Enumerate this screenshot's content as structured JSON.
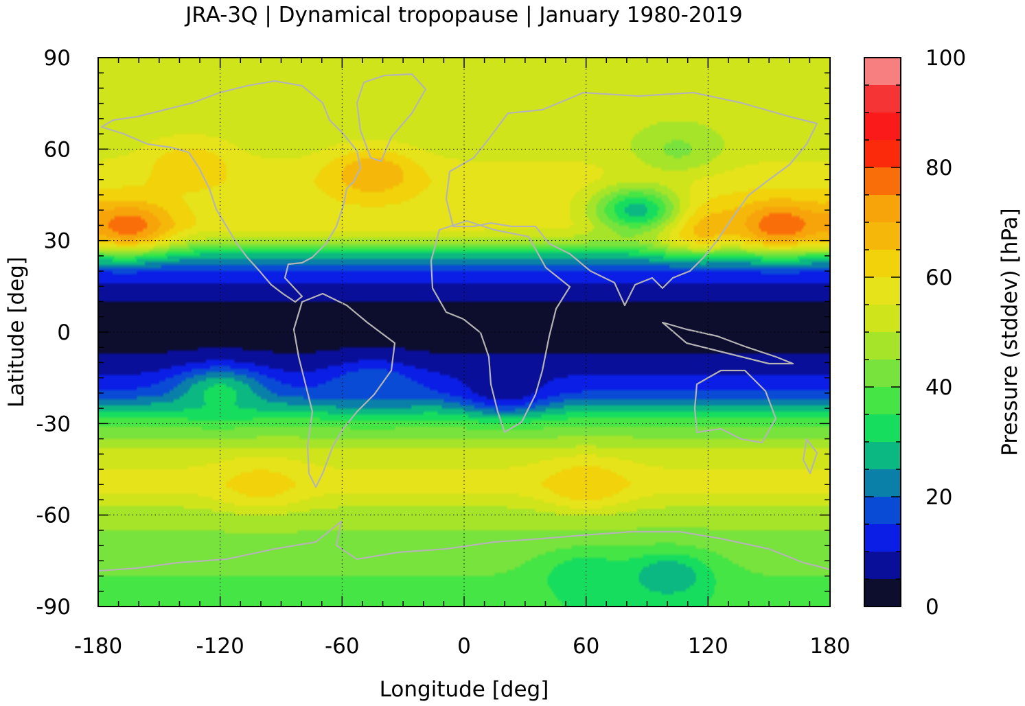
{
  "chart_data": {
    "type": "heatmap",
    "title": "JRA-3Q | Dynamical tropopause | January 1980-2019",
    "xlabel": "Longitude [deg]",
    "ylabel": "Latitude [deg]",
    "colorbar_label": "Pressure (stddev) [hPa]",
    "xlim": [
      -180,
      180
    ],
    "ylim": [
      -90,
      90
    ],
    "x_ticks": [
      -180,
      -120,
      -60,
      0,
      60,
      120,
      180
    ],
    "y_ticks": [
      90,
      60,
      30,
      0,
      -30,
      -60,
      -90
    ],
    "x_tick_labels": [
      "-180",
      "-120",
      "-60",
      "0",
      "60",
      "120",
      "180"
    ],
    "y_tick_labels": [
      "90",
      "60",
      "30",
      "0",
      "-30",
      "-60",
      "-90"
    ],
    "colorbar_ticks": [
      0,
      20,
      40,
      60,
      80,
      100
    ],
    "colorbar_tick_labels": [
      "0",
      "20",
      "40",
      "60",
      "80",
      "100"
    ],
    "color_levels": [
      0,
      5,
      10,
      15,
      20,
      25,
      30,
      35,
      40,
      45,
      50,
      55,
      60,
      65,
      70,
      75,
      80,
      85,
      90,
      95,
      100
    ],
    "colors": [
      "#0d0d2e",
      "#0a0f99",
      "#0a1ee6",
      "#0a4bd6",
      "#0a7fa8",
      "#0bb882",
      "#17dd5f",
      "#45e545",
      "#78e33c",
      "#a6e42a",
      "#cfe41a",
      "#e6e31a",
      "#f2d20a",
      "#f5b80a",
      "#f7a30a",
      "#fa6e0a",
      "#fa2a0a",
      "#fa1a1a",
      "#f53535",
      "#f77f7f",
      "#ffcccc"
    ],
    "grid": true,
    "coastline_color": "#b4b4b4",
    "zonal_profile": {
      "lat": [
        -90,
        -80,
        -70,
        -60,
        -50,
        -40,
        -30,
        -25,
        -20,
        -15,
        -10,
        -5,
        0,
        5,
        10,
        15,
        20,
        25,
        30,
        35,
        40,
        50,
        60,
        70,
        80,
        90
      ],
      "value": [
        36,
        40,
        43,
        47,
        58,
        52,
        39,
        28,
        16,
        11,
        6,
        4,
        3,
        3,
        5,
        9,
        14,
        27,
        48,
        58,
        58,
        58,
        53,
        52,
        52,
        52
      ]
    },
    "features": [
      {
        "lon": -165,
        "lat": 35,
        "value": 78
      },
      {
        "lon": 155,
        "lat": 35,
        "value": 80
      },
      {
        "lon": 115,
        "lat": 35,
        "value": 70
      },
      {
        "lon": -45,
        "lat": 52,
        "value": 70
      },
      {
        "lon": -135,
        "lat": 55,
        "value": 64
      },
      {
        "lon": 85,
        "lat": 40,
        "value": 28
      },
      {
        "lon": 105,
        "lat": 60,
        "value": 44
      },
      {
        "lon": 100,
        "lat": -80,
        "value": 25
      },
      {
        "lon": 60,
        "lat": -80,
        "value": 30
      },
      {
        "lon": 60,
        "lat": -50,
        "value": 64
      },
      {
        "lon": -100,
        "lat": -50,
        "value": 62
      },
      {
        "lon": -120,
        "lat": -20,
        "value": 32
      },
      {
        "lon": -45,
        "lat": -18,
        "value": 20
      },
      {
        "lon": 20,
        "lat": -18,
        "value": 6
      }
    ]
  }
}
